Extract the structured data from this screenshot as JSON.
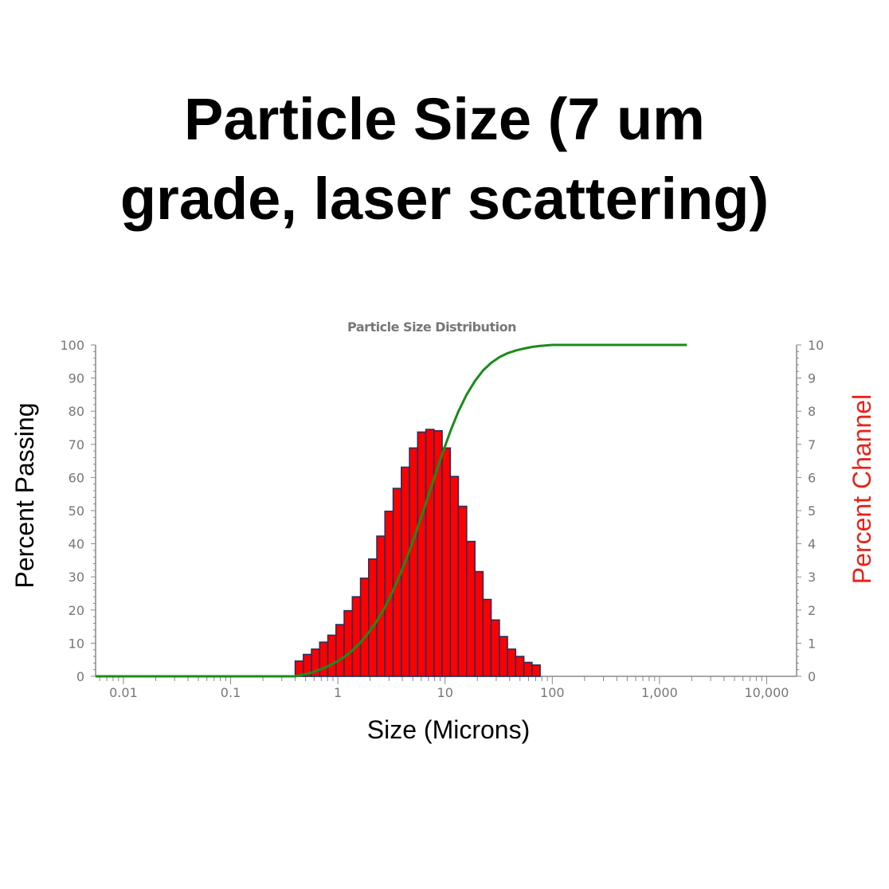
{
  "title_lines": [
    "Particle Size (7 um",
    "grade, laser scattering)"
  ],
  "chart_data": {
    "type": "bar+line",
    "title": "Particle Size Distribution",
    "xlabel": "Size (Microns)",
    "ylabel_left": "Percent Passing",
    "ylabel_right": "Percent Channel",
    "x_scale": "log",
    "xlim": [
      0.0055,
      19000
    ],
    "x_ticks": [
      0.01,
      0.1,
      1,
      10,
      100,
      1000,
      10000
    ],
    "x_tick_labels": [
      "0.01",
      "0.1",
      "1",
      "10",
      "100",
      "1,000",
      "10,000"
    ],
    "ylim_left": [
      0,
      100
    ],
    "y_ticks_left": [
      "0",
      "10",
      "20",
      "30",
      "40",
      "50",
      "60",
      "70",
      "80",
      "90",
      "100"
    ],
    "ylim_right": [
      0,
      10
    ],
    "y_ticks_right": [
      "0",
      "1",
      "2",
      "3",
      "4",
      "5",
      "6",
      "7",
      "8",
      "9",
      "10"
    ],
    "grid": false,
    "colors": {
      "channel_bars": "#ff0000",
      "bar_edge": "#2d2d5a",
      "passing_line": "#1a8c1a",
      "axis": "#888888",
      "right_label": "#e8231a"
    },
    "channel_bin_edges": [
      0.4,
      0.477,
      0.568,
      0.677,
      0.807,
      0.961,
      1.145,
      1.365,
      1.627,
      1.939,
      2.31,
      2.75,
      3.28,
      3.91,
      4.66,
      5.55,
      6.62,
      7.88,
      9.39,
      11.2,
      13.3,
      15.9,
      19.0,
      22.6,
      26.9,
      32.1,
      38.2,
      45.5,
      54.3,
      64.7,
      77.1
    ],
    "channel_values": [
      0.46,
      0.66,
      0.82,
      1.03,
      1.24,
      1.56,
      1.98,
      2.4,
      2.96,
      3.54,
      4.23,
      4.98,
      5.67,
      6.31,
      6.89,
      7.37,
      7.45,
      7.41,
      6.89,
      6.03,
      5.13,
      4.07,
      3.16,
      2.32,
      1.7,
      1.2,
      0.82,
      0.6,
      0.42,
      0.34
    ],
    "passing_curve": {
      "x": [
        0.0055,
        0.4,
        0.477,
        0.568,
        0.677,
        0.807,
        0.961,
        1.145,
        1.365,
        1.627,
        1.939,
        2.31,
        2.75,
        3.28,
        3.91,
        4.66,
        5.55,
        6.62,
        7.88,
        9.39,
        11.2,
        13.3,
        15.9,
        19.0,
        22.6,
        26.9,
        32.1,
        38.2,
        45.5,
        54.3,
        64.7,
        77.1,
        100,
        1800
      ],
      "y": [
        0,
        0,
        0.5,
        1.1,
        2.0,
        3.0,
        4.3,
        5.8,
        7.8,
        10.2,
        13.2,
        16.7,
        20.9,
        25.9,
        31.6,
        37.9,
        44.8,
        52.2,
        59.6,
        67.0,
        73.9,
        79.9,
        85.0,
        89.1,
        92.3,
        94.6,
        96.3,
        97.5,
        98.3,
        98.9,
        99.4,
        99.7,
        100,
        100
      ]
    }
  }
}
